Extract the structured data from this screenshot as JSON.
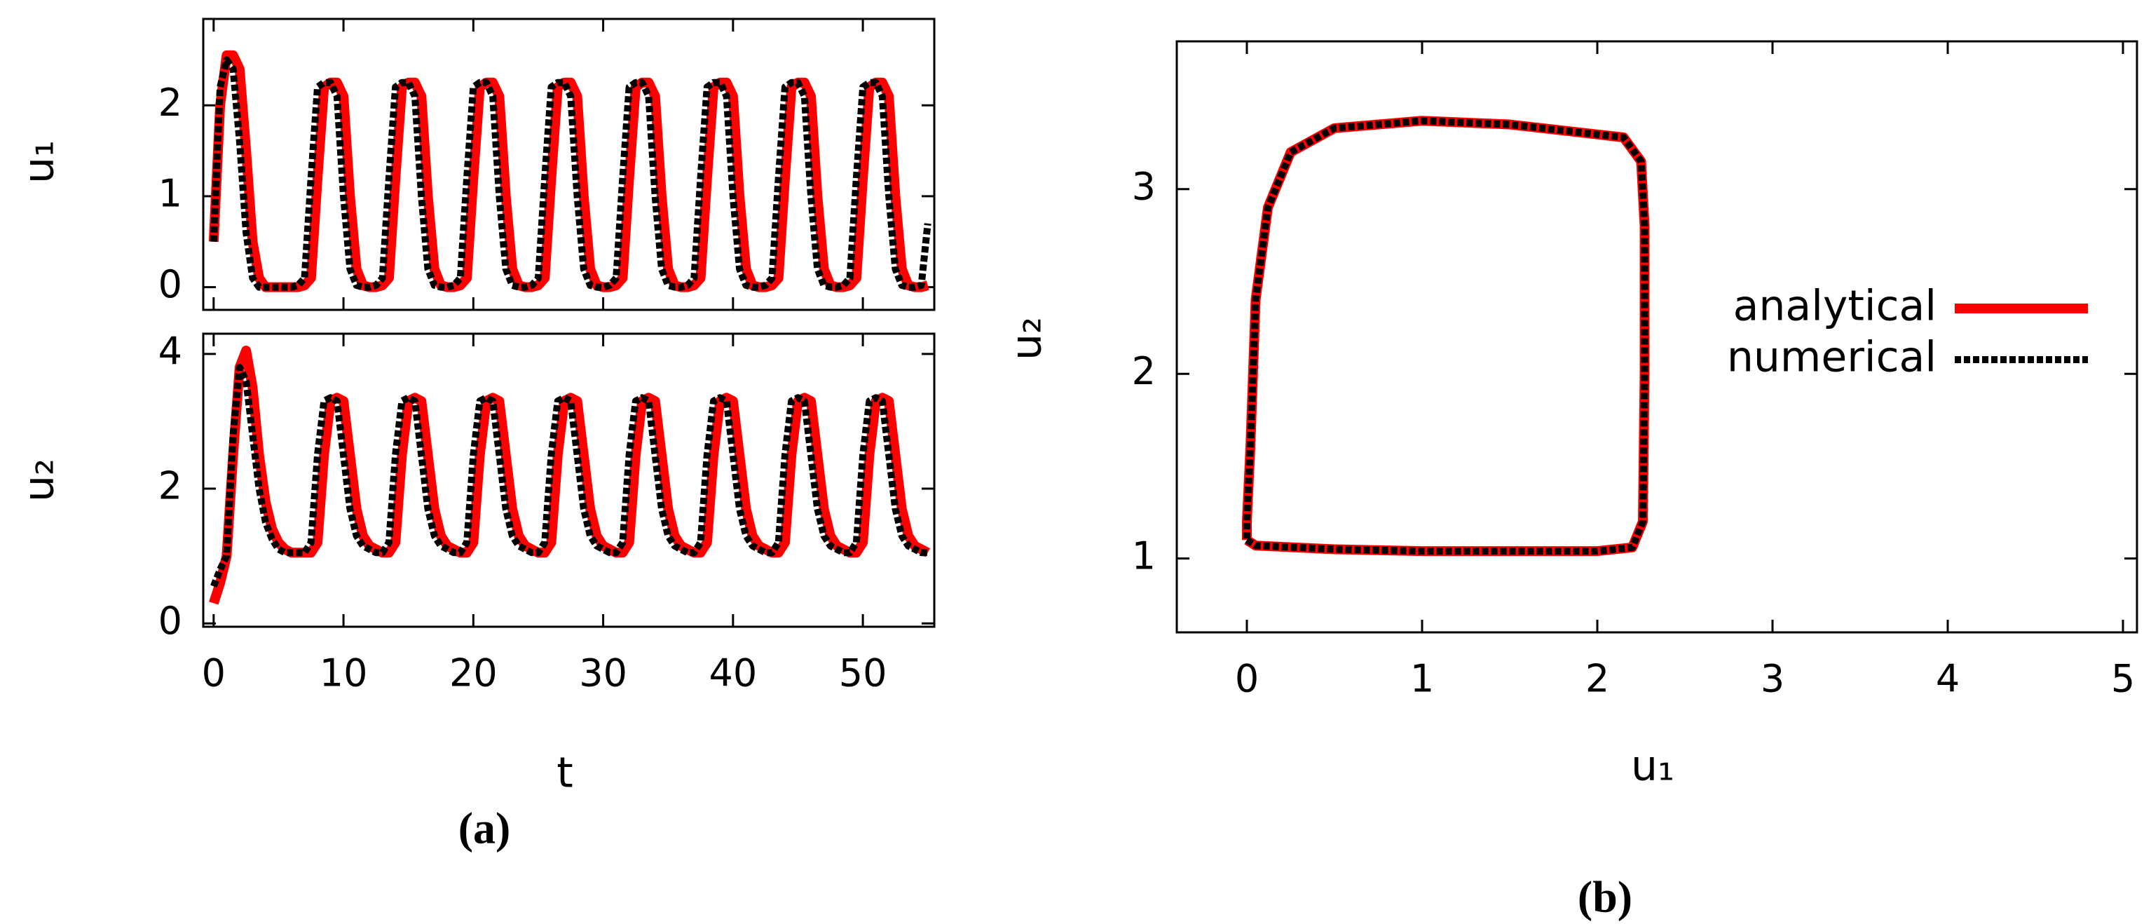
{
  "captions": [
    "(a)",
    "(b)"
  ],
  "chart_data": [
    {
      "type": "line",
      "y_label": "u₁",
      "xtick_labels": false,
      "xlim": [
        -0.8,
        55.5
      ],
      "ylim": [
        -0.25,
        2.95
      ],
      "xticks": [
        0,
        10,
        20,
        30,
        40,
        50
      ],
      "yticks": [
        0,
        1,
        2
      ],
      "x": [
        0,
        0.5,
        1,
        1.5,
        2,
        2.5,
        3,
        3.5,
        4,
        4.5,
        5,
        5.5,
        6,
        6.5,
        7,
        7.5,
        8,
        8.5,
        9,
        9.5,
        10,
        10.5,
        11,
        11.5,
        12,
        12.5,
        13,
        13.5,
        14,
        14.5,
        15,
        15.5,
        16,
        16.5,
        17,
        17.5,
        18,
        18.5,
        19,
        19.5,
        20,
        20.5,
        21,
        21.5,
        22,
        22.5,
        23,
        23.5,
        24,
        24.5,
        25,
        25.5,
        26,
        26.5,
        27,
        27.5,
        28,
        28.5,
        29,
        29.5,
        30,
        30.5,
        31,
        31.5,
        32,
        32.5,
        33,
        33.5,
        34,
        34.5,
        35,
        35.5,
        36,
        36.5,
        37,
        37.5,
        38,
        38.5,
        39,
        39.5,
        40,
        40.5,
        41,
        41.5,
        42,
        42.5,
        43,
        43.5,
        44,
        44.5,
        45,
        45.5,
        46,
        46.5,
        47,
        47.5,
        48,
        48.5,
        49,
        49.5,
        50,
        50.5,
        51,
        51.5,
        52,
        52.5,
        53,
        53.5,
        54,
        54.5,
        55
      ],
      "series": [
        {
          "color": "#ff0000",
          "dash": false,
          "values": [
            0.5,
            2.0,
            2.55,
            2.55,
            2.4,
            1.5,
            0.5,
            0.1,
            0,
            0,
            0,
            0,
            0,
            0,
            0.02,
            0.1,
            1.2,
            2.2,
            2.25,
            2.25,
            2.1,
            1,
            0.2,
            0.02,
            0,
            0,
            0.02,
            0.1,
            1.2,
            2.2,
            2.25,
            2.25,
            2.1,
            1,
            0.2,
            0.02,
            0,
            0,
            0.02,
            0.1,
            1.2,
            2.2,
            2.25,
            2.25,
            2.1,
            1,
            0.2,
            0.02,
            0,
            0,
            0.02,
            0.1,
            1.2,
            2.2,
            2.25,
            2.25,
            2.1,
            1,
            0.2,
            0.02,
            0,
            0,
            0.02,
            0.1,
            1.2,
            2.2,
            2.25,
            2.25,
            2.1,
            1,
            0.2,
            0.02,
            0,
            0,
            0.02,
            0.1,
            1.2,
            2.2,
            2.25,
            2.25,
            2.1,
            1,
            0.2,
            0.02,
            0,
            0,
            0.02,
            0.1,
            1.2,
            2.2,
            2.25,
            2.25,
            2.1,
            1,
            0.2,
            0.02,
            0,
            0,
            0.02,
            0.1,
            1.2,
            2.2,
            2.25,
            2.25,
            2.1,
            1,
            0.2,
            0.02,
            0,
            0,
            0.02
          ]
        },
        {
          "color": "#000000",
          "dash": true,
          "values": [
            0.5,
            2.2,
            2.5,
            2.4,
            1.6,
            0.6,
            0.1,
            0,
            0,
            0,
            0,
            0,
            0,
            0.02,
            0.1,
            1.2,
            2.2,
            2.25,
            2.25,
            2.1,
            1,
            0.2,
            0.02,
            0,
            0,
            0.02,
            0.1,
            1.2,
            2.2,
            2.25,
            2.25,
            2.1,
            1,
            0.2,
            0.02,
            0,
            0,
            0.02,
            0.1,
            1.2,
            2.2,
            2.25,
            2.25,
            2.1,
            1,
            0.2,
            0.02,
            0,
            0,
            0.02,
            0.1,
            1.2,
            2.2,
            2.25,
            2.25,
            2.1,
            1,
            0.2,
            0.02,
            0,
            0,
            0.02,
            0.1,
            1.2,
            2.2,
            2.25,
            2.25,
            2.1,
            1,
            0.2,
            0.02,
            0,
            0,
            0.02,
            0.1,
            1.2,
            2.2,
            2.25,
            2.25,
            2.1,
            1,
            0.2,
            0.02,
            0,
            0,
            0.02,
            0.1,
            1.2,
            2.2,
            2.25,
            2.25,
            2.1,
            1,
            0.2,
            0.02,
            0,
            0,
            0.02,
            0.1,
            1.2,
            2.2,
            2.25,
            2.25,
            2.1,
            1,
            0.2,
            0.02,
            0,
            0,
            0.02,
            0.7
          ]
        }
      ]
    },
    {
      "type": "line",
      "y_label": "u₂",
      "x_label": "t",
      "xtick_labels": true,
      "xlim": [
        -0.8,
        55.5
      ],
      "ylim": [
        -0.05,
        4.3
      ],
      "xticks": [
        0,
        10,
        20,
        30,
        40,
        50
      ],
      "yticks": [
        0,
        2,
        4
      ],
      "x": [
        0,
        0.5,
        1,
        1.5,
        2,
        2.5,
        3,
        3.5,
        4,
        4.5,
        5,
        5.5,
        6,
        6.5,
        7,
        7.5,
        8,
        8.5,
        9,
        9.5,
        10,
        10.5,
        11,
        11.5,
        12,
        12.5,
        13,
        13.5,
        14,
        14.5,
        15,
        15.5,
        16,
        16.5,
        17,
        17.5,
        18,
        18.5,
        19,
        19.5,
        20,
        20.5,
        21,
        21.5,
        22,
        22.5,
        23,
        23.5,
        24,
        24.5,
        25,
        25.5,
        26,
        26.5,
        27,
        27.5,
        28,
        28.5,
        29,
        29.5,
        30,
        30.5,
        31,
        31.5,
        32,
        32.5,
        33,
        33.5,
        34,
        34.5,
        35,
        35.5,
        36,
        36.5,
        37,
        37.5,
        38,
        38.5,
        39,
        39.5,
        40,
        40.5,
        41,
        41.5,
        42,
        42.5,
        43,
        43.5,
        44,
        44.5,
        45,
        45.5,
        46,
        46.5,
        47,
        47.5,
        48,
        48.5,
        49,
        49.5,
        50,
        50.5,
        51,
        51.5,
        52,
        52.5,
        53,
        53.5,
        54,
        54.5,
        55
      ],
      "series": [
        {
          "color": "#ff0000",
          "dash": false,
          "values": [
            0.3,
            0.6,
            1,
            2.5,
            3.8,
            4.05,
            3.5,
            2.5,
            1.8,
            1.4,
            1.2,
            1.1,
            1.05,
            1.05,
            1.05,
            1.05,
            1.2,
            2.5,
            3.3,
            3.35,
            3.3,
            2.5,
            1.7,
            1.3,
            1.15,
            1.1,
            1.05,
            1.05,
            1.2,
            2.5,
            3.3,
            3.35,
            3.3,
            2.5,
            1.7,
            1.3,
            1.15,
            1.1,
            1.05,
            1.05,
            1.2,
            2.5,
            3.3,
            3.35,
            3.3,
            2.5,
            1.7,
            1.3,
            1.15,
            1.1,
            1.05,
            1.05,
            1.2,
            2.5,
            3.3,
            3.35,
            3.3,
            2.5,
            1.7,
            1.3,
            1.15,
            1.1,
            1.05,
            1.05,
            1.2,
            2.5,
            3.3,
            3.35,
            3.3,
            2.5,
            1.7,
            1.3,
            1.15,
            1.1,
            1.05,
            1.05,
            1.2,
            2.5,
            3.3,
            3.35,
            3.3,
            2.5,
            1.7,
            1.3,
            1.15,
            1.1,
            1.05,
            1.05,
            1.2,
            2.5,
            3.3,
            3.35,
            3.3,
            2.5,
            1.7,
            1.3,
            1.15,
            1.1,
            1.05,
            1.05,
            1.2,
            2.5,
            3.3,
            3.35,
            3.3,
            2.5,
            1.7,
            1.3,
            1.15,
            1.1,
            1.05
          ]
        },
        {
          "color": "#000000",
          "dash": true,
          "values": [
            0.55,
            0.8,
            1,
            2.8,
            3.8,
            3.6,
            2.8,
            2,
            1.5,
            1.25,
            1.1,
            1.05,
            1.05,
            1.05,
            1.05,
            1.2,
            2.5,
            3.3,
            3.35,
            3.3,
            2.5,
            1.7,
            1.3,
            1.15,
            1.1,
            1.05,
            1.05,
            1.2,
            2.5,
            3.3,
            3.35,
            3.3,
            2.5,
            1.7,
            1.3,
            1.15,
            1.1,
            1.05,
            1.05,
            1.2,
            2.5,
            3.3,
            3.35,
            3.3,
            2.5,
            1.7,
            1.3,
            1.15,
            1.1,
            1.05,
            1.05,
            1.2,
            2.5,
            3.3,
            3.35,
            3.3,
            2.5,
            1.7,
            1.3,
            1.15,
            1.1,
            1.05,
            1.05,
            1.2,
            2.5,
            3.3,
            3.35,
            3.3,
            2.5,
            1.7,
            1.3,
            1.15,
            1.1,
            1.05,
            1.05,
            1.2,
            2.5,
            3.3,
            3.35,
            3.3,
            2.5,
            1.7,
            1.3,
            1.15,
            1.1,
            1.05,
            1.05,
            1.2,
            2.5,
            3.3,
            3.35,
            3.3,
            2.5,
            1.7,
            1.3,
            1.15,
            1.1,
            1.05,
            1.05,
            1.2,
            2.5,
            3.3,
            3.35,
            3.3,
            2.5,
            1.7,
            1.3,
            1.15,
            1.1,
            1.05,
            1.05
          ]
        }
      ]
    },
    {
      "type": "line",
      "x_label": "u₁",
      "y_label": "u₂",
      "xtick_labels": true,
      "legend": "right",
      "xlim": [
        -0.4,
        5.08
      ],
      "ylim": [
        0.6,
        3.8
      ],
      "xticks": [
        0,
        1,
        2,
        3,
        4,
        5
      ],
      "yticks": [
        1,
        2,
        3
      ],
      "x": [
        0,
        0.05,
        0.5,
        1.0,
        1.5,
        2.0,
        2.2,
        2.26,
        2.27,
        2.27,
        2.25,
        2.15,
        1.5,
        1.0,
        0.5,
        0.25,
        0.12,
        0.05,
        0.02,
        0,
        0
      ],
      "series": [
        {
          "name": "analytical",
          "color": "#ff0000",
          "dash": false,
          "values": [
            1.1,
            1.07,
            1.05,
            1.04,
            1.04,
            1.04,
            1.06,
            1.2,
            2.0,
            2.8,
            3.15,
            3.28,
            3.35,
            3.37,
            3.33,
            3.2,
            2.9,
            2.4,
            1.6,
            1.2,
            1.1
          ]
        },
        {
          "name": "numerical",
          "color": "#000000",
          "dash": true,
          "values": [
            1.1,
            1.07,
            1.05,
            1.04,
            1.04,
            1.04,
            1.06,
            1.2,
            2.0,
            2.8,
            3.15,
            3.28,
            3.35,
            3.37,
            3.33,
            3.2,
            2.9,
            2.4,
            1.6,
            1.2,
            1.1
          ]
        }
      ]
    }
  ]
}
